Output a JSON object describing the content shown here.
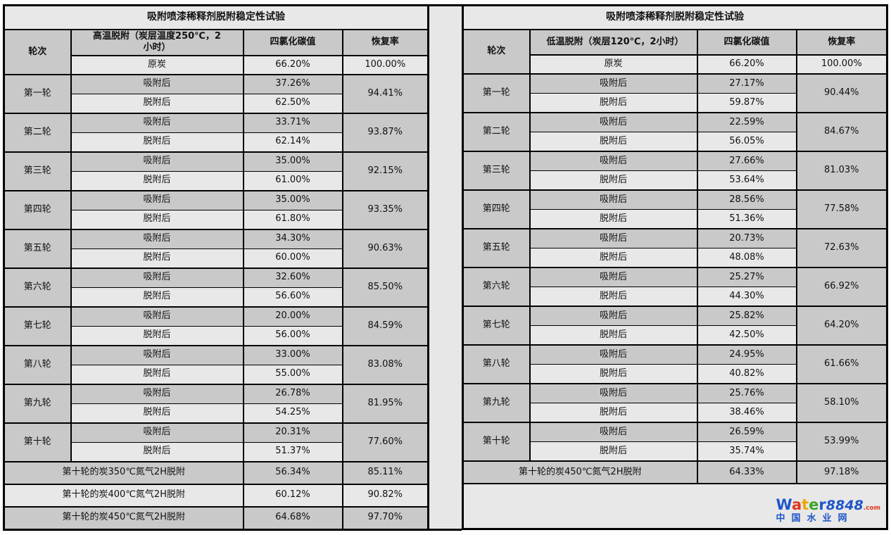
{
  "colors": {
    "row_dark": "#c9c9c9",
    "row_light": "#e8e8e8",
    "border": "#000000",
    "logo_blue": "#1f55c8",
    "logo_red": "#e1341e",
    "logo_yellow": "#eaa800",
    "logo_green": "#3fa32a"
  },
  "left": {
    "title": "吸附喷漆稀释剂脱附稳定性试验",
    "headers": {
      "round": "轮次",
      "condition": "高温脱附（炭层温度250℃，2小时）",
      "value": "四氯化碳值",
      "recovery": "恢复率"
    },
    "base": {
      "label": "原炭",
      "value": "66.20%",
      "recovery": "100.00%"
    },
    "adsorbed_label": "吸附后",
    "desorbed_label": "脱附后",
    "rounds": [
      {
        "name": "第一轮",
        "adsorbed": "37.26%",
        "desorbed": "62.50%",
        "recovery": "94.41%"
      },
      {
        "name": "第二轮",
        "adsorbed": "33.71%",
        "desorbed": "62.14%",
        "recovery": "93.87%"
      },
      {
        "name": "第三轮",
        "adsorbed": "35.00%",
        "desorbed": "61.00%",
        "recovery": "92.15%"
      },
      {
        "name": "第四轮",
        "adsorbed": "35.00%",
        "desorbed": "61.80%",
        "recovery": "93.35%"
      },
      {
        "name": "第五轮",
        "adsorbed": "34.30%",
        "desorbed": "60.00%",
        "recovery": "90.63%"
      },
      {
        "name": "第六轮",
        "adsorbed": "32.60%",
        "desorbed": "56.60%",
        "recovery": "85.50%"
      },
      {
        "name": "第七轮",
        "adsorbed": "20.00%",
        "desorbed": "56.00%",
        "recovery": "84.59%"
      },
      {
        "name": "第八轮",
        "adsorbed": "33.00%",
        "desorbed": "55.00%",
        "recovery": "83.08%"
      },
      {
        "name": "第九轮",
        "adsorbed": "26.78%",
        "desorbed": "54.25%",
        "recovery": "81.95%"
      },
      {
        "name": "第十轮",
        "adsorbed": "20.31%",
        "desorbed": "51.37%",
        "recovery": "77.60%"
      }
    ],
    "extra_rows": [
      {
        "label": "第十轮的炭350℃氮气2H脱附",
        "value": "56.34%",
        "recovery": "85.11%"
      },
      {
        "label": "第十轮的炭400℃氮气2H脱附",
        "value": "60.12%",
        "recovery": "90.82%"
      },
      {
        "label": "第十轮的炭450℃氮气2H脱附",
        "value": "64.68%",
        "recovery": "97.70%"
      }
    ]
  },
  "right": {
    "title": "吸附喷漆稀释剂脱附稳定性试验",
    "headers": {
      "round": "轮次",
      "condition": "低温脱附（炭层120℃，2小时）",
      "value": "四氯化碳值",
      "recovery": "恢复率"
    },
    "base": {
      "label": "原炭",
      "value": "66.20%",
      "recovery": "100.00%"
    },
    "adsorbed_label": "吸附后",
    "desorbed_label": "脱附后",
    "rounds": [
      {
        "name": "第一轮",
        "adsorbed": "27.17%",
        "desorbed": "59.87%",
        "recovery": "90.44%"
      },
      {
        "name": "第二轮",
        "adsorbed": "22.59%",
        "desorbed": "56.05%",
        "recovery": "84.67%"
      },
      {
        "name": "第三轮",
        "adsorbed": "27.66%",
        "desorbed": "53.64%",
        "recovery": "81.03%"
      },
      {
        "name": "第四轮",
        "adsorbed": "28.56%",
        "desorbed": "51.36%",
        "recovery": "77.58%"
      },
      {
        "name": "第五轮",
        "adsorbed": "20.73%",
        "desorbed": "48.08%",
        "recovery": "72.63%"
      },
      {
        "name": "第六轮",
        "adsorbed": "25.27%",
        "desorbed": "44.30%",
        "recovery": "66.92%"
      },
      {
        "name": "第七轮",
        "adsorbed": "25.82%",
        "desorbed": "42.50%",
        "recovery": "64.20%"
      },
      {
        "name": "第八轮",
        "adsorbed": "24.95%",
        "desorbed": "40.82%",
        "recovery": "61.66%"
      },
      {
        "name": "第九轮",
        "adsorbed": "25.76%",
        "desorbed": "38.46%",
        "recovery": "58.10%"
      },
      {
        "name": "第十轮",
        "adsorbed": "26.59%",
        "desorbed": "35.74%",
        "recovery": "53.99%"
      }
    ],
    "extra_rows": [
      {
        "label": "第十轮的炭450℃氮气2H脱附",
        "value": "64.33%",
        "recovery": "97.18%"
      }
    ]
  },
  "watermark": {
    "letters": [
      {
        "ch": "W",
        "color": "#1f55c8"
      },
      {
        "ch": "a",
        "color": "#e1341e"
      },
      {
        "ch": "t",
        "color": "#eaa800"
      },
      {
        "ch": "e",
        "color": "#3fa32a"
      },
      {
        "ch": "r",
        "color": "#1f55c8"
      }
    ],
    "number": "8848",
    "number_color": "#1f55c8",
    "tld": ".com",
    "tld_color": "#e1341e",
    "subtitle": "中国水业网",
    "subtitle_color": "#1f55c8"
  }
}
